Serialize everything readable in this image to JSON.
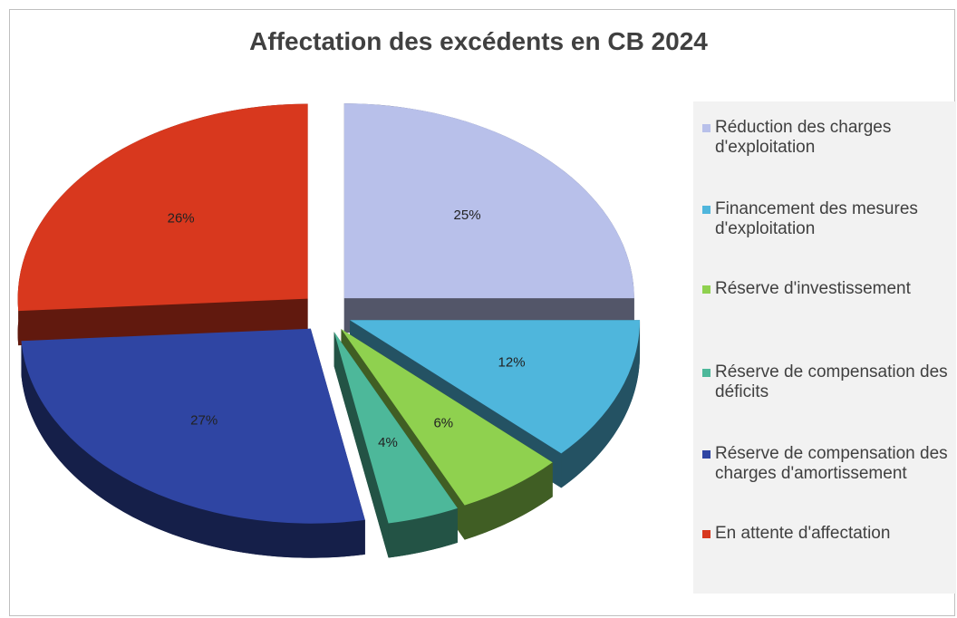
{
  "chart_data": {
    "type": "pie",
    "title": "Affectation des excédents en CB 2024",
    "categories": [
      "Réduction des charges d'exploitation",
      "Financement des mesures d'exploitation",
      "Réserve d'investissement",
      "Réserve de compensation des déficits",
      "Réserve de compensation des charges d'amortissement",
      "En attente d'affectation"
    ],
    "values": [
      25,
      12,
      6,
      4,
      27,
      26
    ],
    "value_labels": [
      "25%",
      "12%",
      "6%",
      "4%",
      "27%",
      "26%"
    ],
    "colors": [
      "#b8c0ea",
      "#4fb6dc",
      "#8fd14f",
      "#4db89a",
      "#2f45a3",
      "#d8381e"
    ],
    "legend": "right"
  }
}
